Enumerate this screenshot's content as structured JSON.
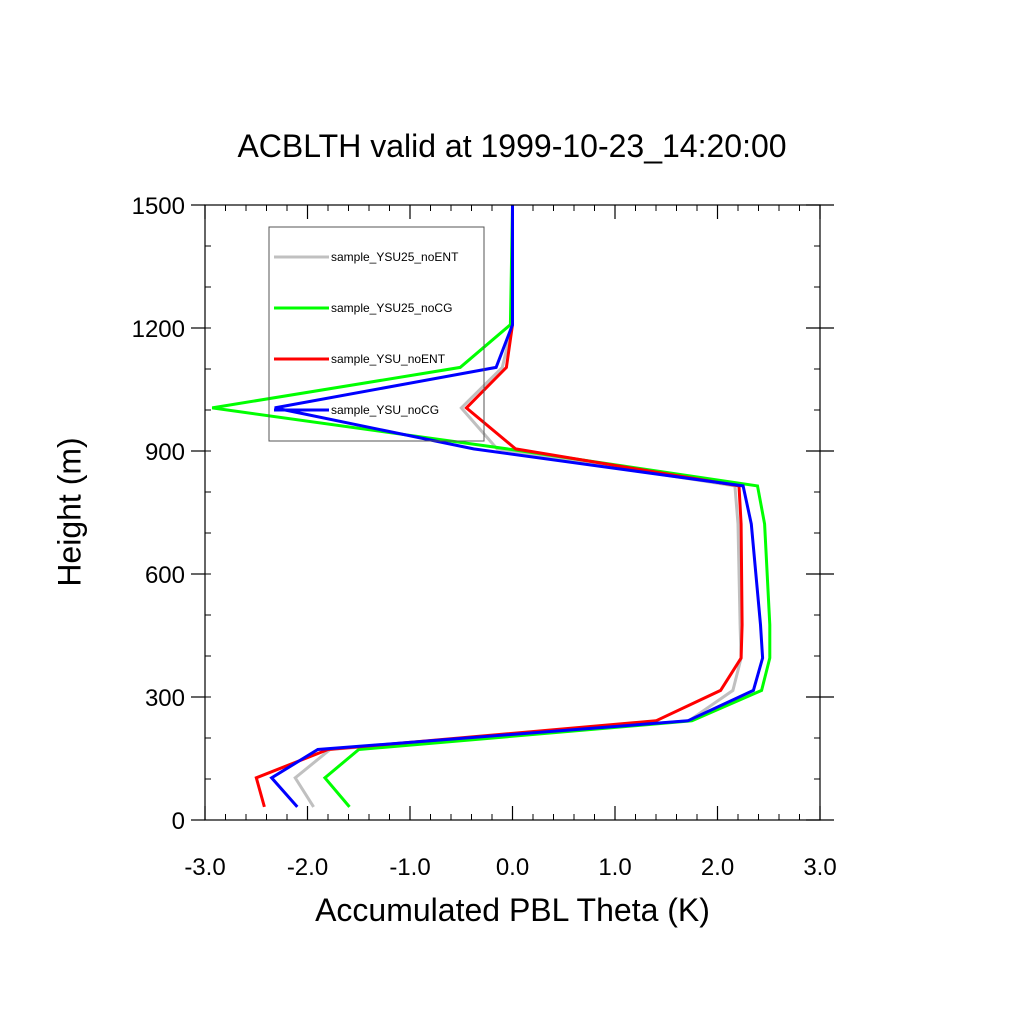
{
  "chart_data": {
    "type": "line",
    "title": "ACBLTH valid at 1999-10-23_14:20:00",
    "xlabel": "Accumulated PBL Theta (K)",
    "ylabel": "Height (m)",
    "xlim": [
      -3.0,
      3.0
    ],
    "ylim": [
      0,
      1500
    ],
    "xticks": [
      "-3.0",
      "-2.0",
      "-1.0",
      "0.0",
      "1.0",
      "2.0",
      "3.0"
    ],
    "yticks": [
      "0",
      "300",
      "600",
      "900",
      "1200",
      "1500"
    ],
    "legend_position": "top-left",
    "series": [
      {
        "name": "sample_YSU25_noENT",
        "color": "#c0c0c0",
        "x": [
          -1.94,
          -2.12,
          -1.78,
          1.72,
          2.15,
          2.23,
          2.22,
          2.2,
          2.17,
          -0.15,
          -0.5,
          -0.1,
          0.0,
          0.0
        ],
        "y": [
          32,
          103,
          172,
          242,
          316,
          395,
          476,
          722,
          815,
          905,
          1005,
          1104,
          1208,
          1500
        ]
      },
      {
        "name": "sample_YSU25_noCG",
        "color": "#00ff00",
        "x": [
          -1.59,
          -1.83,
          -1.5,
          1.75,
          2.43,
          2.51,
          2.51,
          2.46,
          2.39,
          -0.05,
          -2.93,
          -0.51,
          -0.02,
          0.0
        ],
        "y": [
          32,
          103,
          172,
          242,
          316,
          395,
          476,
          722,
          815,
          905,
          1005,
          1104,
          1208,
          1500
        ]
      },
      {
        "name": "sample_YSU_noENT",
        "color": "#ff0000",
        "x": [
          -2.42,
          -2.5,
          -1.8,
          1.4,
          2.03,
          2.23,
          2.24,
          2.23,
          2.21,
          0.03,
          -0.45,
          -0.06,
          0.0,
          0.0
        ],
        "y": [
          32,
          103,
          172,
          242,
          316,
          395,
          476,
          722,
          815,
          905,
          1005,
          1104,
          1208,
          1500
        ]
      },
      {
        "name": "sample_YSU_noCG",
        "color": "#0000ff",
        "x": [
          -2.1,
          -2.35,
          -1.9,
          1.71,
          2.35,
          2.44,
          2.42,
          2.33,
          2.25,
          -0.38,
          -2.32,
          -0.16,
          0.0,
          0.0
        ],
        "y": [
          32,
          103,
          172,
          242,
          316,
          395,
          476,
          722,
          815,
          905,
          1005,
          1104,
          1208,
          1500
        ]
      }
    ]
  }
}
